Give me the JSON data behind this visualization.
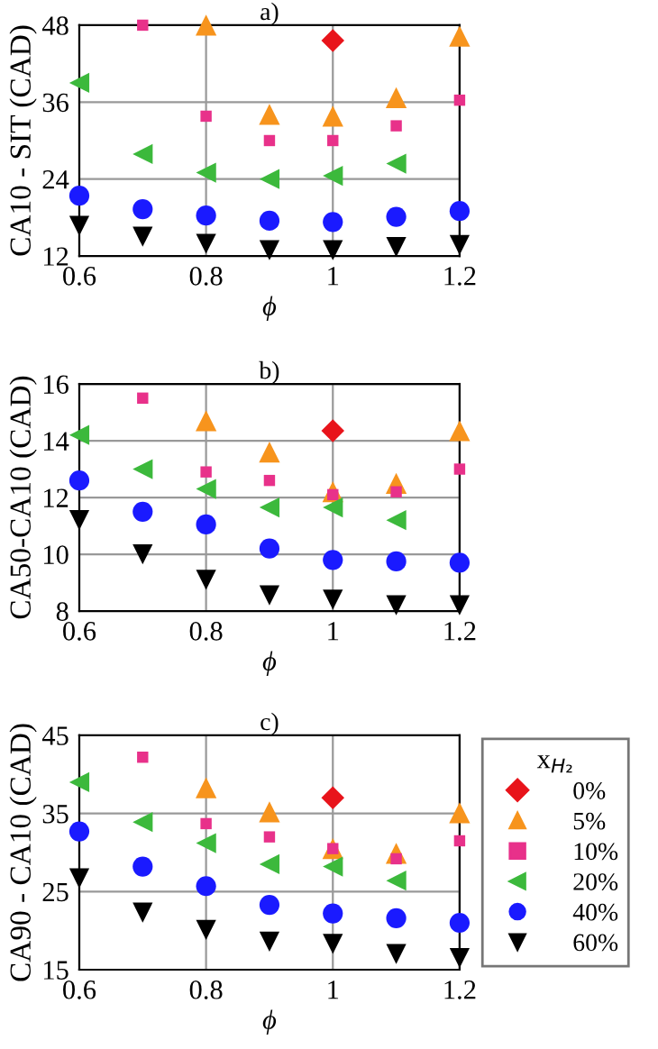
{
  "chart_data": [
    {
      "type": "scatter",
      "title": "a)",
      "xlabel": "ϕ",
      "ylabel": "CA10 - SIT (CAD)",
      "x": [
        0.6,
        0.7,
        0.8,
        0.9,
        1,
        1.1,
        1.2
      ],
      "xlim": [
        0.6,
        1.2
      ],
      "xticks": [
        0.6,
        0.8,
        1,
        1.2
      ],
      "ylim": [
        12,
        48
      ],
      "yticks": [
        12,
        24,
        36,
        48
      ],
      "grid": true,
      "series": [
        {
          "color": "#e8141b",
          "marker": "diamond",
          "values": [
            null,
            null,
            null,
            null,
            45.6,
            null,
            null
          ]
        },
        {
          "color": "#f7941d",
          "marker": "triangle",
          "values": [
            null,
            null,
            48,
            34.1,
            33.8,
            36.7,
            46.3
          ]
        },
        {
          "color": "#e8318a",
          "marker": "square",
          "values": [
            null,
            48,
            33.8,
            30,
            30,
            32.3,
            36.3
          ]
        },
        {
          "color": "#3cb93c",
          "marker": "triangle-left",
          "values": [
            39,
            27.9,
            25,
            24,
            24.5,
            26.4,
            null
          ]
        },
        {
          "color": "#1a1aff",
          "marker": "circle",
          "values": [
            21.4,
            19.3,
            18.3,
            17.5,
            17.3,
            18.1,
            19
          ]
        },
        {
          "color": "#000000",
          "marker": "triangle-down",
          "values": [
            16.7,
            15,
            13.9,
            12.9,
            12.9,
            13.4,
            13.7
          ]
        }
      ]
    },
    {
      "type": "scatter",
      "title": "b)",
      "xlabel": "ϕ",
      "ylabel": "CA50-CA10 (CAD)",
      "x": [
        0.6,
        0.7,
        0.8,
        0.9,
        1,
        1.1,
        1.2
      ],
      "xlim": [
        0.6,
        1.2
      ],
      "xticks": [
        0.6,
        0.8,
        1,
        1.2
      ],
      "ylim": [
        8,
        16
      ],
      "yticks": [
        8,
        10,
        12,
        14,
        16
      ],
      "grid": true,
      "series": [
        {
          "color": "#e8141b",
          "marker": "diamond",
          "values": [
            null,
            null,
            null,
            null,
            14.35,
            null,
            null
          ]
        },
        {
          "color": "#f7941d",
          "marker": "triangle",
          "values": [
            null,
            null,
            14.7,
            13.6,
            12.2,
            12.5,
            14.35
          ]
        },
        {
          "color": "#e8318a",
          "marker": "square",
          "values": [
            null,
            15.5,
            12.9,
            12.6,
            12.1,
            12.2,
            13.0
          ]
        },
        {
          "color": "#3cb93c",
          "marker": "triangle-left",
          "values": [
            14.2,
            13.0,
            12.3,
            11.65,
            11.65,
            11.2,
            null
          ]
        },
        {
          "color": "#1a1aff",
          "marker": "circle",
          "values": [
            12.6,
            11.5,
            11.05,
            10.2,
            9.8,
            9.75,
            9.7
          ]
        },
        {
          "color": "#000000",
          "marker": "triangle-down",
          "values": [
            11.2,
            10.0,
            9.1,
            8.55,
            8.4,
            8.2,
            8.2
          ]
        }
      ]
    },
    {
      "type": "scatter",
      "title": "c)",
      "xlabel": "ϕ",
      "ylabel": "CA90 - CA10 (CAD)",
      "x": [
        0.6,
        0.7,
        0.8,
        0.9,
        1,
        1.1,
        1.2
      ],
      "xlim": [
        0.6,
        1.2
      ],
      "xticks": [
        0.6,
        0.8,
        1,
        1.2
      ],
      "ylim": [
        15,
        45
      ],
      "yticks": [
        15,
        25,
        35,
        45
      ],
      "grid": true,
      "legend": "right",
      "legend_title": "x$_{H₂}$",
      "series": [
        {
          "name": "0%",
          "color": "#e8141b",
          "marker": "diamond",
          "values": [
            null,
            null,
            null,
            null,
            37.0,
            null,
            null
          ]
        },
        {
          "name": "5%",
          "color": "#f7941d",
          "marker": "triangle",
          "values": [
            null,
            null,
            38.3,
            35.2,
            30.5,
            29.9,
            35.1
          ]
        },
        {
          "name": "10%",
          "color": "#e8318a",
          "marker": "square",
          "values": [
            null,
            42.2,
            33.7,
            32.0,
            30.5,
            29.2,
            31.5
          ]
        },
        {
          "name": "20%",
          "color": "#3cb93c",
          "marker": "triangle-left",
          "values": [
            39,
            33.9,
            31.2,
            28.5,
            28.2,
            26.4,
            null
          ]
        },
        {
          "name": "40%",
          "color": "#1a1aff",
          "marker": "circle",
          "values": [
            32.7,
            28.2,
            25.7,
            23.3,
            22.2,
            21.6,
            21
          ]
        },
        {
          "name": "60%",
          "color": "#000000",
          "marker": "triangle-down",
          "values": [
            26.7,
            22.3,
            20.1,
            18.6,
            18.3,
            17,
            16.5
          ]
        }
      ]
    }
  ]
}
